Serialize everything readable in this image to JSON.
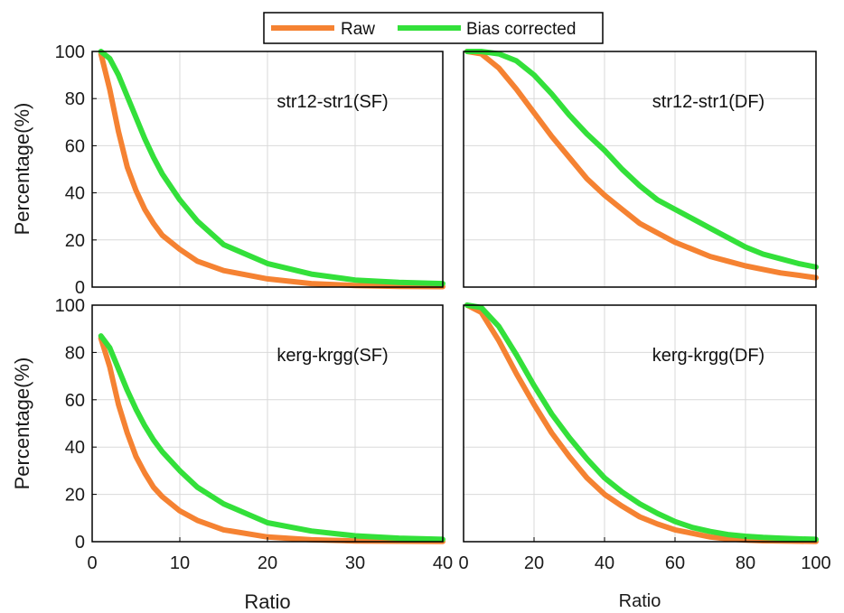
{
  "legend": {
    "items": [
      {
        "label": "Raw",
        "color": "#f58232"
      },
      {
        "label": "Bias corrected",
        "color": "#33e03a"
      }
    ],
    "placement": "top-center"
  },
  "colors": {
    "raw": "#f58232",
    "bias_corrected": "#33e03a",
    "grid": "#d9d9d9",
    "axis": "#000000"
  },
  "chart_data": [
    {
      "type": "line",
      "panel_label": "str12-str1(SF)",
      "xlabel": "",
      "ylabel": "Percentage(%)",
      "xlim": [
        0,
        40
      ],
      "ylim": [
        0,
        100
      ],
      "xticks": [],
      "yticks": [
        0,
        20,
        40,
        60,
        80,
        100
      ],
      "grid": true,
      "series": [
        {
          "name": "Raw",
          "x": [
            1,
            2,
            3,
            4,
            5,
            6,
            7,
            8,
            10,
            12,
            15,
            20,
            25,
            30,
            35,
            40
          ],
          "values": [
            99,
            84,
            66,
            51,
            41,
            33,
            27,
            22,
            16,
            11,
            7,
            3.5,
            1.5,
            0.7,
            0.3,
            0.2
          ]
        },
        {
          "name": "Bias corrected",
          "x": [
            1,
            2,
            3,
            4,
            5,
            6,
            7,
            8,
            10,
            12,
            15,
            20,
            25,
            30,
            35,
            40
          ],
          "values": [
            100,
            97,
            90,
            81,
            72,
            63,
            55,
            48,
            37,
            28,
            18,
            10,
            5.5,
            3,
            2,
            1.5
          ]
        }
      ]
    },
    {
      "type": "line",
      "panel_label": "str12-str1(DF)",
      "xlabel": "",
      "ylabel": "",
      "xlim": [
        0,
        100
      ],
      "ylim": [
        0,
        100
      ],
      "xticks": [],
      "yticks": [],
      "grid": true,
      "series": [
        {
          "name": "Raw",
          "x": [
            1,
            5,
            10,
            15,
            20,
            25,
            30,
            35,
            40,
            45,
            50,
            55,
            60,
            65,
            70,
            75,
            80,
            85,
            90,
            95,
            100
          ],
          "values": [
            100,
            99,
            93,
            84,
            74,
            64,
            55,
            46,
            39,
            33,
            27,
            23,
            19,
            16,
            13,
            11,
            9,
            7.5,
            6,
            5,
            4
          ]
        },
        {
          "name": "Bias corrected",
          "x": [
            1,
            5,
            10,
            15,
            20,
            25,
            30,
            35,
            40,
            45,
            50,
            55,
            60,
            65,
            70,
            75,
            80,
            85,
            90,
            95,
            100
          ],
          "values": [
            100,
            100,
            99,
            96,
            90,
            82,
            73,
            65,
            58,
            50,
            43,
            37,
            33,
            29,
            25,
            21,
            17,
            14,
            12,
            10,
            8.5
          ]
        }
      ]
    },
    {
      "type": "line",
      "panel_label": "kerg-krgg(SF)",
      "xlabel": "Ratio",
      "ylabel": "Percentage(%)",
      "xlim": [
        0,
        40
      ],
      "ylim": [
        0,
        100
      ],
      "xticks": [
        0,
        10,
        20,
        30,
        40
      ],
      "yticks": [
        0,
        20,
        40,
        60,
        80,
        100
      ],
      "grid": true,
      "series": [
        {
          "name": "Raw",
          "x": [
            1,
            2,
            3,
            4,
            5,
            6,
            7,
            8,
            10,
            12,
            15,
            20,
            25,
            30,
            35,
            40
          ],
          "values": [
            86,
            74,
            58,
            46,
            36,
            29,
            23,
            19,
            13,
            9,
            5,
            2,
            0.8,
            0.3,
            0.2,
            0.1
          ]
        },
        {
          "name": "Bias corrected",
          "x": [
            1,
            2,
            3,
            4,
            5,
            6,
            7,
            8,
            10,
            12,
            15,
            20,
            25,
            30,
            35,
            40
          ],
          "values": [
            87,
            82,
            73,
            64,
            56,
            49,
            43,
            38,
            30,
            23,
            16,
            8,
            4.5,
            2.5,
            1.5,
            1
          ]
        }
      ]
    },
    {
      "type": "line",
      "panel_label": "kerg-krgg(DF)",
      "xlabel": "Ratio",
      "ylabel": "",
      "xlim": [
        0,
        100
      ],
      "ylim": [
        0,
        100
      ],
      "xticks": [
        0,
        20,
        40,
        60,
        80,
        100
      ],
      "yticks": [],
      "grid": true,
      "series": [
        {
          "name": "Raw",
          "x": [
            1,
            5,
            10,
            15,
            20,
            25,
            30,
            35,
            40,
            45,
            50,
            55,
            60,
            65,
            70,
            75,
            80,
            85,
            90,
            95,
            100
          ],
          "values": [
            100,
            97,
            85,
            71,
            58,
            46,
            36,
            27,
            20,
            15,
            10.5,
            7.5,
            5,
            3.5,
            2,
            1.2,
            0.7,
            0.4,
            0.3,
            0.2,
            0.1
          ]
        },
        {
          "name": "Bias corrected",
          "x": [
            1,
            5,
            10,
            15,
            20,
            25,
            30,
            35,
            40,
            45,
            50,
            55,
            60,
            65,
            70,
            75,
            80,
            85,
            90,
            95,
            100
          ],
          "values": [
            100,
            99,
            91,
            79,
            66,
            54,
            44,
            35,
            27,
            21,
            16,
            12,
            8.5,
            6,
            4.3,
            3,
            2.3,
            1.8,
            1.5,
            1.2,
            1
          ]
        }
      ]
    }
  ]
}
